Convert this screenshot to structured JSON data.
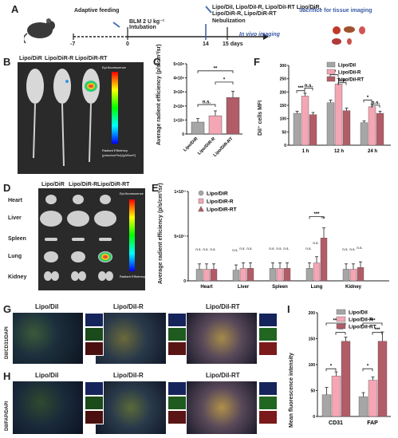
{
  "panels": {
    "A": {
      "letter": "A",
      "steps": {
        "adaptive": "Adaptive feeding",
        "intubation": "BLM 2 U kg⁻¹ Intubation",
        "nebulization_groups": "Lipo/DiI, Lipo/DiI-R, Lipo/DiI-RT Lipo/DiR, Lipo/DiR-R, Lipo/DiR-RT",
        "nebulization": "Nebulization",
        "in_vivo": "In vivo imaging",
        "sacrifice": "Sacrifice for tissue imaging"
      },
      "ticks": [
        "-7",
        "0",
        "14",
        "15 days"
      ]
    },
    "B": {
      "letter": "B",
      "groups": [
        "Lipo/DiR",
        "Lipo/DiR-R",
        "Lipo/DiR-RT"
      ],
      "colorbar_title": "Epi-fluorescence",
      "colorbar_sub": "Radiant Efficiency",
      "colorbar_unit": "(p/sec/cm²/sr)/(µW/cm²)"
    },
    "C": {
      "letter": "C",
      "ylabel": "Average radient efficiency (p/s/cm²/sr)",
      "yticks": [
        "0",
        "1×10⁸",
        "2×10⁸",
        "3×10⁸",
        "4×10⁸",
        "5×10⁸"
      ],
      "sig": [
        "n.s.",
        "*",
        "**"
      ]
    },
    "D": {
      "letter": "D",
      "groups": [
        "Lipo/DiR",
        "Lipo/DiR-R",
        "Lipo/DiR-RT"
      ],
      "organs": [
        "Heart",
        "Liver",
        "Spleen",
        "Lung",
        "Kidney"
      ],
      "colorbar_title": "Epi-fluorescence",
      "colorbar_sub": "Radiant Efficiency"
    },
    "E": {
      "letter": "E",
      "ylabel": "Average radient efficiency (p/s/cm²/sr)",
      "yticks": [
        "0",
        "5×10¹¹",
        "1×10¹²"
      ],
      "legend": [
        "Lipo/DiR",
        "Lipo/DiR-R",
        "Lipo/DiR-RT"
      ],
      "sig_ns": "n.s.",
      "sig_star": "***"
    },
    "F": {
      "letter": "F",
      "ylabel": "DiI⁺ cells MFI",
      "yticks": [
        "0",
        "50",
        "100",
        "150",
        "200",
        "250",
        "300"
      ],
      "legend": [
        "Lipo/DiI",
        "Lipo/DiI-R",
        "Lipo/DiI-RT"
      ],
      "sig": [
        "***",
        "**",
        "*",
        "n.s.",
        "n.s.",
        "n.s."
      ]
    },
    "G": {
      "letter": "G",
      "row_label": "DiI/CD31/DAPI",
      "groups": [
        "Lipo/DiI",
        "Lipo/DiI-R",
        "Lipo/DiI-RT"
      ]
    },
    "H": {
      "letter": "H",
      "row_label": "DiI/FAP/DAPI",
      "groups": [
        "Lipo/DiI",
        "Lipo/DiI-R",
        "Lipo/DiI-RT"
      ]
    },
    "I": {
      "letter": "I",
      "ylabel": "Mean fluorescence intensity",
      "yticks": [
        "0",
        "50",
        "100",
        "150",
        "200"
      ],
      "legend": [
        "Lipo/DiI",
        "Lipo/DiI-R",
        "Lipo/DiI-RT"
      ],
      "sig": [
        "*",
        "***",
        "***",
        "*",
        "***",
        "***"
      ]
    }
  },
  "colors": {
    "grey": "#a6a6a6",
    "pink": "#f4a6b4",
    "maroon": "#b25c68"
  },
  "chart_data": [
    {
      "id": "C",
      "type": "bar",
      "categories": [
        "Lipo/DiR",
        "Lipo/DiR-R",
        "Lipo/DiR-RT"
      ],
      "values": [
        0.85,
        1.3,
        2.6
      ],
      "errors": [
        0.25,
        0.35,
        0.45
      ],
      "ylim": [
        0,
        5
      ]
    },
    {
      "id": "E",
      "type": "bar",
      "categories": [
        "Heart",
        "Liver",
        "Spleen",
        "Lung",
        "Kidney"
      ],
      "series": [
        {
          "name": "Lipo/DiR",
          "values": [
            0.13,
            0.12,
            0.14,
            0.14,
            0.13
          ]
        },
        {
          "name": "Lipo/DiR-R",
          "values": [
            0.13,
            0.14,
            0.14,
            0.2,
            0.13
          ]
        },
        {
          "name": "Lipo/DiR-RT",
          "values": [
            0.13,
            0.14,
            0.14,
            0.48,
            0.15
          ]
        }
      ],
      "ylim": [
        0,
        1
      ]
    },
    {
      "id": "F",
      "type": "bar",
      "categories": [
        "1 h",
        "12 h",
        "24 h"
      ],
      "series": [
        {
          "name": "Lipo/DiI",
          "values": [
            120,
            160,
            85
          ],
          "errors": [
            8,
            10,
            6
          ]
        },
        {
          "name": "Lipo/DiI-R",
          "values": [
            185,
            230,
            145
          ],
          "errors": [
            10,
            20,
            10
          ]
        },
        {
          "name": "Lipo/DiI-RT",
          "values": [
            115,
            130,
            120
          ],
          "errors": [
            8,
            10,
            8
          ]
        }
      ],
      "ylim": [
        0,
        300
      ]
    },
    {
      "id": "I",
      "type": "bar",
      "categories": [
        "CD31",
        "FAP"
      ],
      "series": [
        {
          "name": "Lipo/DiI",
          "values": [
            42,
            38
          ],
          "errors": [
            14,
            8
          ]
        },
        {
          "name": "Lipo/DiI-R",
          "values": [
            78,
            70
          ],
          "errors": [
            8,
            6
          ]
        },
        {
          "name": "Lipo/DiI-RT",
          "values": [
            145,
            145
          ],
          "errors": [
            8,
            18
          ]
        }
      ],
      "ylim": [
        0,
        200
      ]
    }
  ]
}
